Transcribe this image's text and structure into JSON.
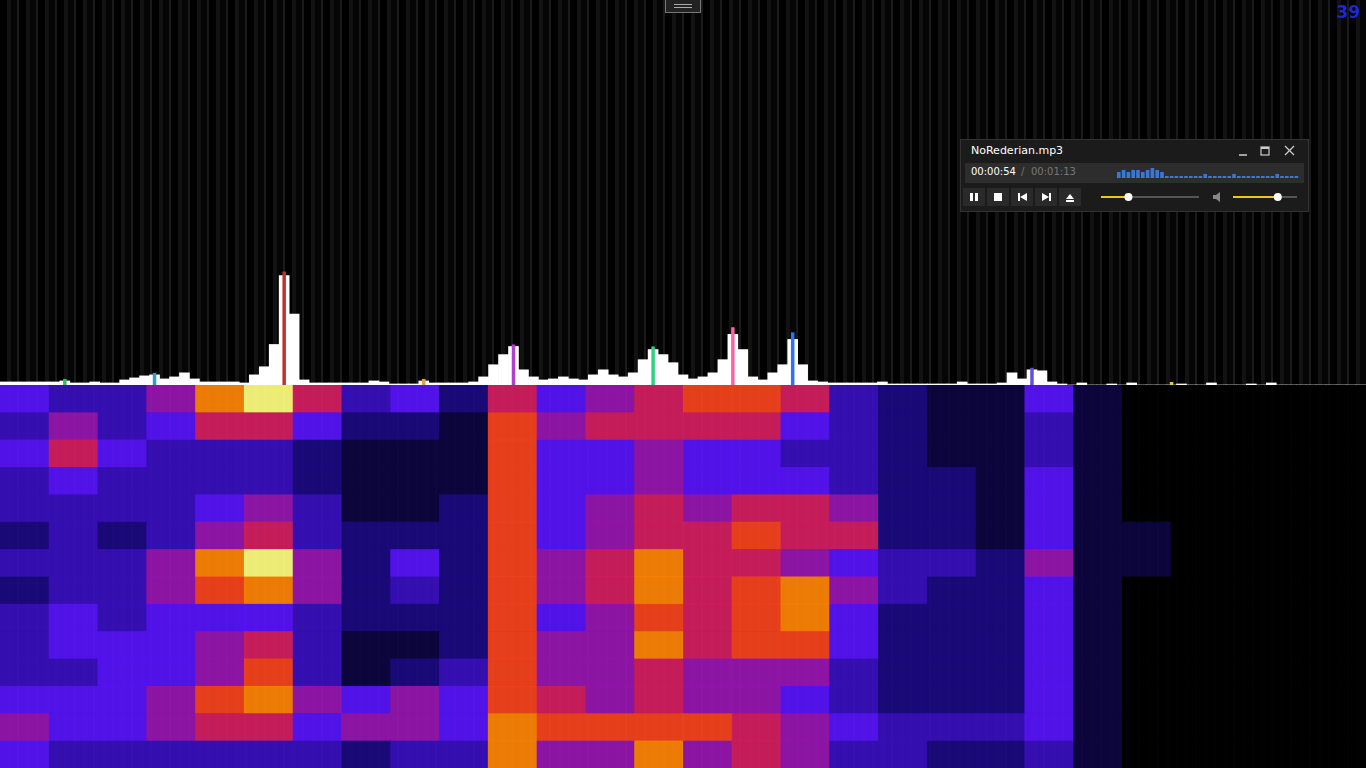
{
  "screen": {
    "counter": 39
  },
  "player": {
    "title": "NoRederian.mp3",
    "elapsed": "00:00:54",
    "separator": "/",
    "total": "00:01:13",
    "levels": [
      3,
      4,
      3,
      4,
      4,
      3,
      4,
      5,
      4,
      3,
      1,
      1,
      1,
      1,
      1,
      1,
      1,
      1,
      2,
      1,
      1,
      1,
      1,
      1,
      2,
      1,
      1,
      1,
      1,
      1,
      1,
      1,
      1,
      2,
      1,
      1,
      1,
      1
    ],
    "sliders": [
      {
        "value": 28,
        "range": [
          0,
          100
        ]
      },
      {
        "value": 70,
        "range": [
          0,
          100
        ]
      }
    ]
  },
  "chart_data": [
    {
      "type": "bar",
      "color": "#ffffff",
      "ylim": [
        0,
        380
      ],
      "tick_labels": false,
      "grid": false,
      "categories": [
        null,
        null,
        null,
        null,
        null,
        null,
        null,
        null,
        null,
        null,
        null,
        null,
        null,
        null,
        null,
        null,
        null,
        null,
        null,
        null,
        null,
        null,
        null,
        null,
        null,
        null,
        null,
        null,
        null,
        null,
        null,
        null,
        null,
        null,
        null,
        null,
        null,
        null,
        null,
        null,
        null,
        null,
        null,
        null,
        null,
        null,
        null,
        null,
        null,
        null,
        null,
        null,
        null,
        null,
        null,
        null,
        null,
        null,
        null,
        null,
        null,
        null,
        null,
        null,
        null,
        null,
        null,
        null,
        null,
        null,
        null,
        null,
        null,
        null,
        null,
        null,
        null,
        null,
        null,
        null,
        null,
        null,
        null,
        null,
        null,
        null,
        null,
        null,
        null,
        null,
        null,
        null,
        null,
        null,
        null,
        null,
        null,
        null,
        null,
        null,
        null,
        null,
        null,
        null,
        null,
        null,
        null,
        null,
        null,
        null,
        null,
        null,
        null,
        null,
        null,
        null,
        null,
        null,
        null,
        null,
        null,
        null,
        null,
        null,
        null,
        null,
        null,
        null,
        null,
        null,
        null,
        null,
        null,
        null,
        null,
        null,
        null
      ],
      "values": [
        3,
        3,
        3,
        3,
        3,
        3,
        4,
        2,
        2,
        3,
        2,
        2,
        5,
        7,
        9,
        10,
        6,
        8,
        12,
        6,
        3,
        3,
        3,
        3,
        2,
        10,
        18,
        40,
        108,
        70,
        5,
        2,
        2,
        2,
        2,
        2,
        2,
        4,
        3,
        1,
        1,
        1,
        4,
        2,
        2,
        2,
        2,
        3,
        8,
        20,
        30,
        38,
        15,
        8,
        5,
        6,
        8,
        6,
        5,
        10,
        15,
        10,
        8,
        12,
        25,
        35,
        30,
        22,
        10,
        6,
        8,
        12,
        25,
        50,
        35,
        8,
        5,
        12,
        20,
        45,
        20,
        4,
        3,
        2,
        2,
        2,
        2,
        2,
        3,
        1,
        1,
        1,
        1,
        1,
        1,
        1,
        3,
        1,
        1,
        1,
        2,
        12,
        6,
        15,
        14,
        3,
        1,
        0,
        2,
        0,
        0,
        1,
        0,
        2,
        0,
        0,
        0,
        0,
        1,
        0,
        0,
        2,
        0,
        0,
        0,
        1,
        0,
        2,
        0,
        0,
        0,
        0,
        0,
        0,
        0,
        0,
        0
      ],
      "markers": {
        "positions": [
          6,
          15,
          28,
          42,
          51,
          65,
          73,
          79,
          103,
          117
        ],
        "values": [
          6,
          12,
          112,
          6,
          40,
          38,
          57,
          52,
          17,
          3
        ],
        "colors": [
          "#30c060",
          "#30a0c0",
          "#c03030",
          "#e0a040",
          "#b040d0",
          "#30d080",
          "#ff60a0",
          "#3070ff",
          "#6050e0",
          "#e0d040"
        ]
      }
    },
    {
      "type": "heatmap",
      "tick_labels": false,
      "range": [
        0,
        9
      ],
      "cells": [
        [
          4,
          3,
          3,
          5,
          8,
          9,
          6,
          3,
          4,
          2,
          6,
          4,
          5,
          6,
          7,
          7,
          6,
          3,
          2,
          1,
          1,
          4,
          1,
          0,
          0,
          0,
          0,
          0
        ],
        [
          3,
          5,
          3,
          4,
          6,
          6,
          4,
          2,
          2,
          1,
          7,
          5,
          6,
          6,
          6,
          6,
          4,
          3,
          2,
          1,
          1,
          3,
          1,
          0,
          0,
          0,
          0,
          0
        ],
        [
          4,
          6,
          4,
          3,
          3,
          3,
          2,
          1,
          1,
          1,
          7,
          4,
          4,
          5,
          4,
          4,
          3,
          3,
          2,
          1,
          1,
          3,
          1,
          0,
          0,
          0,
          0,
          0
        ],
        [
          3,
          4,
          3,
          3,
          3,
          3,
          2,
          1,
          1,
          1,
          7,
          4,
          4,
          5,
          4,
          4,
          4,
          3,
          2,
          2,
          1,
          4,
          1,
          0,
          0,
          0,
          0,
          0
        ],
        [
          3,
          3,
          3,
          3,
          4,
          5,
          3,
          1,
          1,
          2,
          7,
          4,
          5,
          6,
          5,
          6,
          6,
          5,
          2,
          2,
          1,
          4,
          1,
          0,
          0,
          0,
          0,
          0
        ],
        [
          2,
          3,
          2,
          3,
          5,
          6,
          3,
          2,
          2,
          2,
          7,
          4,
          5,
          6,
          6,
          7,
          6,
          6,
          2,
          2,
          1,
          4,
          1,
          1,
          0,
          0,
          0,
          0
        ],
        [
          3,
          3,
          3,
          5,
          8,
          9,
          5,
          2,
          4,
          2,
          7,
          5,
          6,
          8,
          6,
          6,
          5,
          4,
          3,
          3,
          2,
          5,
          1,
          1,
          0,
          0,
          0,
          0
        ],
        [
          2,
          3,
          3,
          5,
          7,
          8,
          5,
          2,
          3,
          2,
          7,
          5,
          6,
          8,
          6,
          7,
          8,
          5,
          3,
          2,
          2,
          4,
          1,
          0,
          0,
          0,
          0,
          0
        ],
        [
          3,
          4,
          3,
          4,
          4,
          4,
          3,
          2,
          2,
          2,
          7,
          4,
          5,
          7,
          6,
          7,
          8,
          4,
          2,
          2,
          2,
          4,
          1,
          0,
          0,
          0,
          0,
          0
        ],
        [
          3,
          4,
          4,
          4,
          5,
          6,
          3,
          1,
          1,
          2,
          7,
          5,
          5,
          8,
          6,
          7,
          7,
          4,
          2,
          2,
          2,
          4,
          1,
          0,
          0,
          0,
          0,
          0
        ],
        [
          3,
          3,
          4,
          4,
          5,
          7,
          3,
          1,
          2,
          3,
          7,
          5,
          5,
          6,
          5,
          5,
          5,
          3,
          2,
          2,
          2,
          4,
          1,
          0,
          0,
          0,
          0,
          0
        ],
        [
          4,
          4,
          4,
          5,
          7,
          8,
          5,
          4,
          5,
          4,
          7,
          6,
          5,
          6,
          5,
          5,
          4,
          3,
          2,
          2,
          2,
          4,
          1,
          0,
          0,
          0,
          0,
          0
        ],
        [
          5,
          4,
          4,
          5,
          6,
          6,
          4,
          5,
          5,
          4,
          8,
          7,
          7,
          7,
          7,
          6,
          5,
          4,
          3,
          3,
          3,
          4,
          1,
          0,
          0,
          0,
          0,
          0
        ],
        [
          4,
          3,
          3,
          3,
          3,
          3,
          3,
          2,
          3,
          3,
          8,
          5,
          5,
          8,
          5,
          6,
          5,
          3,
          3,
          2,
          2,
          3,
          1,
          0,
          0,
          0,
          0,
          0
        ]
      ]
    }
  ]
}
